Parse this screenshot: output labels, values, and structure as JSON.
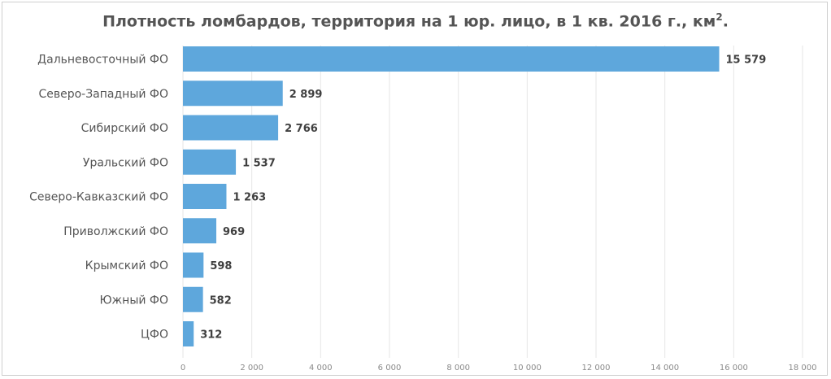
{
  "chart_data": {
    "type": "bar",
    "orientation": "horizontal",
    "title": "Плотность ломбардов, территория на 1 юр. лицо, в 1 кв. 2016 г., км",
    "title_superscript": "2",
    "title_suffix": ".",
    "categories": [
      "Дальневосточный ФО",
      "Северо-Западный ФО",
      "Сибирский ФО",
      "Уральский ФО",
      "Северо-Кавказский ФО",
      "Приволжский ФО",
      "Крымский ФО",
      "Южный ФО",
      "ЦФО"
    ],
    "values": [
      15579,
      2899,
      2766,
      1537,
      1263,
      969,
      598,
      582,
      312
    ],
    "value_labels": [
      "15 579",
      "2 899",
      "2 766",
      "1 537",
      "1 263",
      "969",
      "598",
      "582",
      "312"
    ],
    "x_ticks": [
      0,
      2000,
      4000,
      6000,
      8000,
      10000,
      12000,
      14000,
      16000,
      18000
    ],
    "x_tick_labels": [
      "0",
      "2 000",
      "4 000",
      "6 000",
      "8 000",
      "10 000",
      "12 000",
      "14 000",
      "16 000",
      "18 000"
    ],
    "xlim": [
      0,
      18000
    ],
    "xlabel": "",
    "ylabel": "",
    "grid": "vertical",
    "bar_color": "#5ea7dc",
    "grid_color": "#e6e6e6"
  }
}
